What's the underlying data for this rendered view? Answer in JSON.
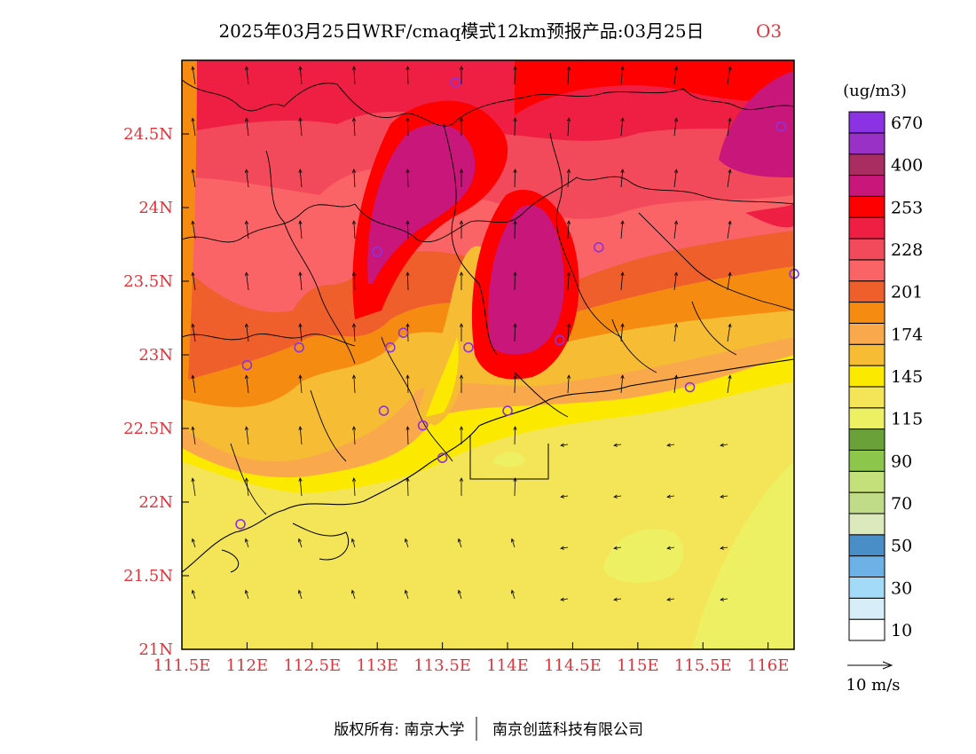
{
  "title": {
    "main": "2025年03月25日WRF/cmaq模式12km预报产品:03月25日",
    "species": "O3"
  },
  "map": {
    "x_ticks": [
      "111.5E",
      "112E",
      "112.5E",
      "113E",
      "113.5E",
      "114E",
      "114.5E",
      "115E",
      "115.5E",
      "116E"
    ],
    "y_ticks": [
      "21N",
      "21.5N",
      "22N",
      "22.5N",
      "23N",
      "23.5N",
      "24N",
      "24.5N"
    ],
    "lon_range": [
      111.5,
      116.2
    ],
    "lat_range": [
      21.0,
      25.0
    ],
    "stations": [
      {
        "lon": 113.6,
        "lat": 24.85
      },
      {
        "lon": 116.1,
        "lat": 24.55
      },
      {
        "lon": 113.0,
        "lat": 23.7
      },
      {
        "lon": 114.7,
        "lat": 23.73
      },
      {
        "lon": 116.2,
        "lat": 23.55
      },
      {
        "lon": 113.2,
        "lat": 23.15
      },
      {
        "lon": 113.1,
        "lat": 23.05
      },
      {
        "lon": 112.4,
        "lat": 23.05
      },
      {
        "lon": 113.7,
        "lat": 23.05
      },
      {
        "lon": 114.4,
        "lat": 23.1
      },
      {
        "lon": 112.0,
        "lat": 22.93
      },
      {
        "lon": 115.4,
        "lat": 22.78
      },
      {
        "lon": 113.05,
        "lat": 22.62
      },
      {
        "lon": 114.0,
        "lat": 22.62
      },
      {
        "lon": 113.35,
        "lat": 22.52
      },
      {
        "lon": 113.5,
        "lat": 22.3
      },
      {
        "lon": 111.95,
        "lat": 21.85
      }
    ]
  },
  "legend": {
    "unit": "(ug/m3)",
    "colors": [
      "#ffffff",
      "#d7eef8",
      "#a2daf7",
      "#6db2e6",
      "#4a8ec8",
      "#dce9bd",
      "#c1dc88",
      "#c4e07a",
      "#8cc64a",
      "#6aa239",
      "#eef064",
      "#f3e458",
      "#fbe900",
      "#f6bd34",
      "#f9a94c",
      "#f58c11",
      "#ef5f2b",
      "#fa6466",
      "#f24a5a",
      "#ef1f44",
      "#ff0000",
      "#c8167a",
      "#a92d60",
      "#9931c7",
      "#8b32e4"
    ],
    "labels": [
      "10",
      "30",
      "50",
      "70",
      "90",
      "115",
      "145",
      "174",
      "201",
      "228",
      "253",
      "400",
      "670"
    ],
    "vector_ref": "10 m/s"
  },
  "footer": {
    "left": "版权所有: 南京大学",
    "right": "南京创蓝科技有限公司"
  }
}
